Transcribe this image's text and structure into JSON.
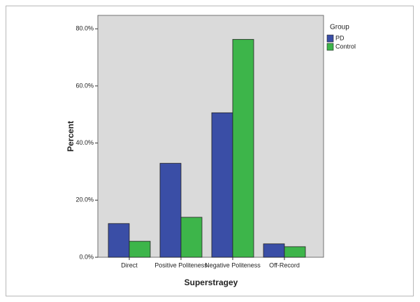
{
  "chart_data": {
    "type": "bar",
    "x_label": "Superstragey",
    "y_label": "Percent",
    "legend_title": "Group",
    "categories": [
      "Direct",
      "Positive Politeness",
      "Negative Politeness",
      "Off-Record"
    ],
    "series": [
      {
        "name": "PD",
        "color": "#3a4ea6",
        "values": [
          11.8,
          32.9,
          50.6,
          4.7
        ]
      },
      {
        "name": "Control",
        "color": "#3db54a",
        "values": [
          5.6,
          14.0,
          76.3,
          3.7
        ]
      }
    ],
    "ylim": [
      0,
      84.7
    ],
    "yticks": [
      {
        "value": 0,
        "label": "0.0%"
      },
      {
        "value": 20,
        "label": "20.0%"
      },
      {
        "value": 40,
        "label": "40.0%"
      },
      {
        "value": 60,
        "label": "60.0%"
      },
      {
        "value": 80,
        "label": "80.0%"
      }
    ],
    "legend_position": "right"
  }
}
